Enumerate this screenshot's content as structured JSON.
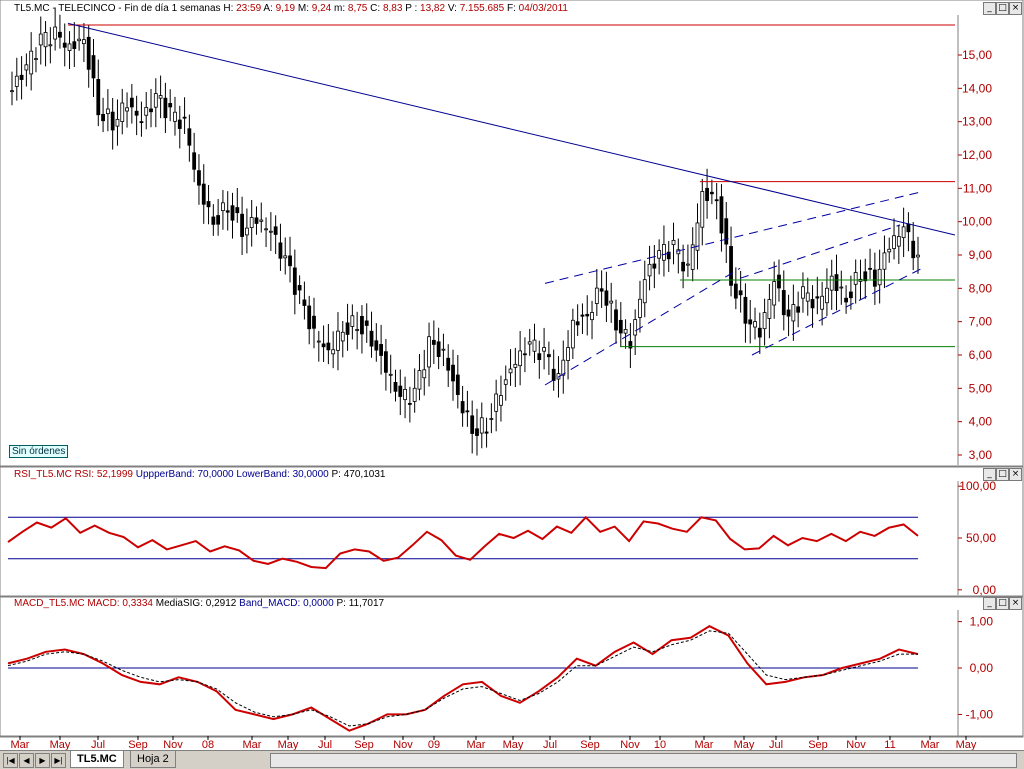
{
  "price_header": {
    "symbol": "TL5.MC - TELECINCO",
    "period": "Fin de día 1 semanas",
    "h_label": "H:",
    "h_value": "23:59",
    "a_label": "A:",
    "a_value": "9,19",
    "m_label": "M:",
    "m_value": "9,24",
    "mn_label": "m:",
    "mn_value": "8,75",
    "c_label": "C:",
    "c_value": "8,83",
    "p_label": "P :",
    "p_value": "13,82",
    "v_label": "V:",
    "v_value": "7.155.685",
    "f_label": "F:",
    "f_value": "04/03/2011"
  },
  "rsi_header": {
    "name": "RSI_TL5.MC",
    "rsi_label": "RSI:",
    "rsi_value": "52,1999",
    "upper_label": "UppperBand:",
    "upper_value": "70,0000",
    "lower_label": "LowerBand:",
    "lower_value": "30,0000",
    "p_label": "P:",
    "p_value": "470,1031"
  },
  "macd_header": {
    "name": "MACD_TL5.MC",
    "macd_label": "MACD:",
    "macd_value": "0,3334",
    "sig_label": "MediaSIG:",
    "sig_value": "0,2912",
    "band_label": "Band_MACD:",
    "band_value": "0,0000",
    "p_label": "P:",
    "p_value": "11,7017"
  },
  "status_box": "Sin órdenes",
  "window_buttons": {
    "minimize": "_",
    "restore": "□",
    "close": "×"
  },
  "tabs": {
    "active": "TL5.MC",
    "second": "Hoja 2",
    "nav": [
      "|◀",
      "◀",
      "▶",
      "▶|"
    ]
  },
  "colors": {
    "price_axis_text": "#b00000",
    "trendline": "#000090",
    "resistance": "#cc0000",
    "support": "#008000",
    "channel": "#0000a0",
    "rsi_line": "#cc0000",
    "macd_line": "#cc0000"
  },
  "chart_data": [
    {
      "type": "candlestick",
      "title": "TL5.MC - TELECINCO",
      "ylim": [
        2.7,
        16.2
      ],
      "y_ticks": [
        "3,00",
        "4,00",
        "5,00",
        "6,00",
        "7,00",
        "8,00",
        "9,00",
        "10,00",
        "11,00",
        "12,00",
        "13,00",
        "14,00",
        "15,00"
      ],
      "x_ticks": [
        "Mar",
        "May",
        "Jul",
        "Sep",
        "Nov",
        "08",
        "Mar",
        "May",
        "Jul",
        "Sep",
        "Nov",
        "09",
        "Mar",
        "May",
        "Jul",
        "Sep",
        "Nov",
        "10",
        "Mar",
        "May",
        "Jul",
        "Sep",
        "Nov",
        "11",
        "Mar",
        "May"
      ],
      "close_approx": [
        14.0,
        14.6,
        15.4,
        15.6,
        15.2,
        15.5,
        13.4,
        13.0,
        13.6,
        13.0,
        13.7,
        13.2,
        12.9,
        11.0,
        10.0,
        10.5,
        9.8,
        10.1,
        9.7,
        8.8,
        7.7,
        6.6,
        6.1,
        6.8,
        7.0,
        6.5,
        5.6,
        4.7,
        4.8,
        6.3,
        6.0,
        4.8,
        3.8,
        3.9,
        5.0,
        5.8,
        6.3,
        6.0,
        5.2,
        6.9,
        7.2,
        8.1,
        7.0,
        6.4,
        8.3,
        9.0,
        9.2,
        8.5,
        10.8,
        10.7,
        8.3,
        7.2,
        6.7,
        8.2,
        7.0,
        7.8,
        7.5,
        8.3,
        7.7,
        8.5,
        8.3,
        9.3,
        9.8,
        8.8
      ],
      "lines": {
        "trend_resistance": {
          "from": [
            15.9,
            15.9
          ],
          "to": [
            11.2,
            9.6
          ]
        },
        "horizontal_red": [
          15.9,
          11.2
        ],
        "horizontal_green": [
          8.25,
          6.25
        ]
      }
    },
    {
      "type": "line",
      "title": "RSI_TL5.MC",
      "ylim": [
        -5,
        105
      ],
      "y_ticks": [
        "0,00",
        "50,00",
        "100,00"
      ],
      "bands": [
        70,
        30
      ],
      "values": [
        46,
        56,
        65,
        60,
        69,
        55,
        62,
        55,
        51,
        41,
        48,
        39,
        43,
        47,
        37,
        42,
        38,
        28,
        25,
        30,
        27,
        22,
        21,
        35,
        39,
        37,
        28,
        31,
        43,
        56,
        48,
        33,
        29,
        42,
        54,
        50,
        57,
        49,
        61,
        55,
        70,
        56,
        61,
        47,
        66,
        64,
        59,
        56,
        70,
        67,
        49,
        39,
        40,
        52,
        43,
        50,
        47,
        54,
        47,
        56,
        52,
        60,
        63,
        52
      ]
    },
    {
      "type": "line",
      "title": "MACD_TL5.MC",
      "ylim": [
        -1.4,
        1.25
      ],
      "y_ticks": [
        "-1,00",
        "0,00",
        "1,00"
      ],
      "series": [
        {
          "name": "MACD",
          "values": [
            0.1,
            0.2,
            0.35,
            0.4,
            0.3,
            0.1,
            -0.15,
            -0.3,
            -0.35,
            -0.2,
            -0.3,
            -0.5,
            -0.9,
            -1.0,
            -1.1,
            -1.0,
            -0.85,
            -1.1,
            -1.35,
            -1.2,
            -1.0,
            -1.0,
            -0.9,
            -0.6,
            -0.35,
            -0.3,
            -0.6,
            -0.75,
            -0.5,
            -0.2,
            0.2,
            0.05,
            0.35,
            0.55,
            0.3,
            0.6,
            0.65,
            0.9,
            0.7,
            0.1,
            -0.35,
            -0.3,
            -0.2,
            -0.15,
            0.0,
            0.1,
            0.2,
            0.4,
            0.3
          ]
        },
        {
          "name": "MediaSIG",
          "values": [
            0.05,
            0.15,
            0.3,
            0.35,
            0.3,
            0.15,
            -0.05,
            -0.2,
            -0.3,
            -0.25,
            -0.3,
            -0.45,
            -0.75,
            -0.95,
            -1.05,
            -1.0,
            -0.9,
            -1.05,
            -1.25,
            -1.2,
            -1.05,
            -1.0,
            -0.9,
            -0.65,
            -0.45,
            -0.4,
            -0.55,
            -0.7,
            -0.55,
            -0.3,
            0.05,
            0.05,
            0.25,
            0.45,
            0.35,
            0.5,
            0.6,
            0.8,
            0.75,
            0.3,
            -0.15,
            -0.25,
            -0.2,
            -0.15,
            -0.05,
            0.05,
            0.15,
            0.3,
            0.3
          ]
        }
      ]
    }
  ]
}
